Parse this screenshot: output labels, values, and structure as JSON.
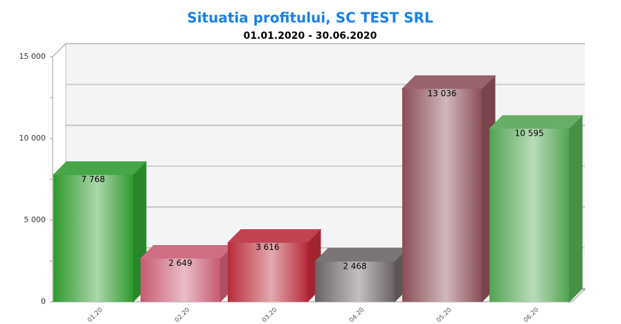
{
  "chart_data": {
    "type": "bar3d",
    "title": "Situatia profitului, SC TEST SRL",
    "subtitle": "01.01.2020 - 30.06.2020",
    "categories": [
      "01.20",
      "02.20",
      "03.20",
      "04.20",
      "05.20",
      "06.20"
    ],
    "values": [
      7768,
      2649,
      3616,
      2468,
      13036,
      10595
    ],
    "value_labels": [
      "7 768",
      "2 649",
      "3 616",
      "2 468",
      "13 036",
      "10 595"
    ],
    "colors": [
      "#2e9a2e",
      "#c85a72",
      "#b82a3a",
      "#6a6262",
      "#8a4e56",
      "#52a452"
    ],
    "ylim": [
      0,
      15000
    ],
    "yticks": [
      0,
      {
        "value": 5000,
        "label": "5 000"
      },
      {
        "value": 10000,
        "label": "10 000"
      },
      {
        "value": 15000,
        "label": "15 000"
      }
    ],
    "y_minor_ticks": [
      2500,
      7500,
      12500
    ],
    "grid": true
  }
}
